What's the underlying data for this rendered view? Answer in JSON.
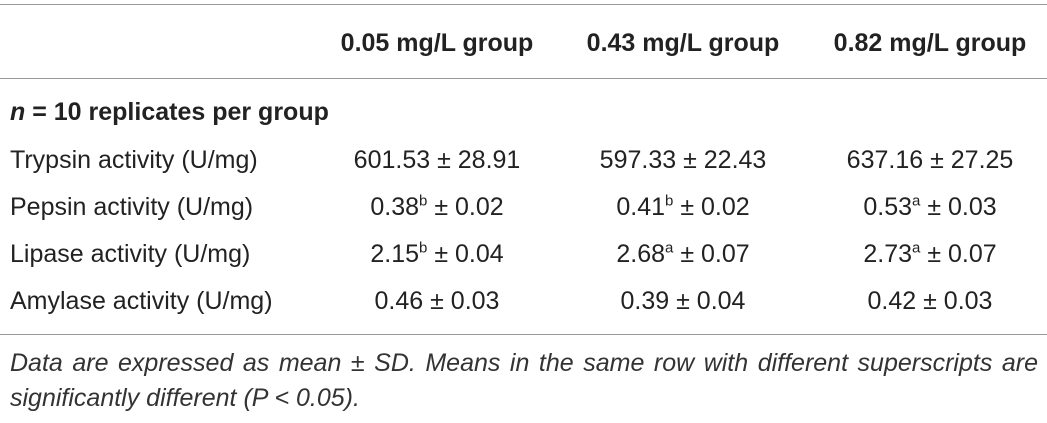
{
  "table": {
    "columns": [
      "0.05 mg/L group",
      "0.43 mg/L group",
      "0.82 mg/L group"
    ],
    "section": {
      "var": "n",
      "text": " = 10 replicates per group"
    },
    "rows": [
      {
        "label": "Trypsin activity (U/mg)",
        "cells": [
          {
            "main": "601.53 ± 28.91"
          },
          {
            "main": "597.33 ± 22.43"
          },
          {
            "main": "637.16 ± 27.25"
          }
        ]
      },
      {
        "label": "Pepsin activity (U/mg)",
        "cells": [
          {
            "main": "0.38",
            "sup": "b",
            "rest": " ± 0.02"
          },
          {
            "main": "0.41",
            "sup": "b",
            "rest": " ± 0.02"
          },
          {
            "main": "0.53",
            "sup": "a",
            "rest": " ± 0.03"
          }
        ]
      },
      {
        "label": "Lipase activity (U/mg)",
        "cells": [
          {
            "main": "2.15",
            "sup": "b",
            "rest": " ± 0.04"
          },
          {
            "main": "2.68",
            "sup": "a",
            "rest": " ± 0.07"
          },
          {
            "main": "2.73",
            "sup": "a",
            "rest": " ± 0.07"
          }
        ]
      },
      {
        "label": "Amylase activity (U/mg)",
        "cells": [
          {
            "main": "0.46 ± 0.03"
          },
          {
            "main": "0.39 ± 0.04"
          },
          {
            "main": "0.42 ± 0.03"
          }
        ]
      }
    ],
    "footnote": "Data are expressed as mean ± SD. Means in the same row with different superscripts are significantly different (P < 0.05)."
  }
}
